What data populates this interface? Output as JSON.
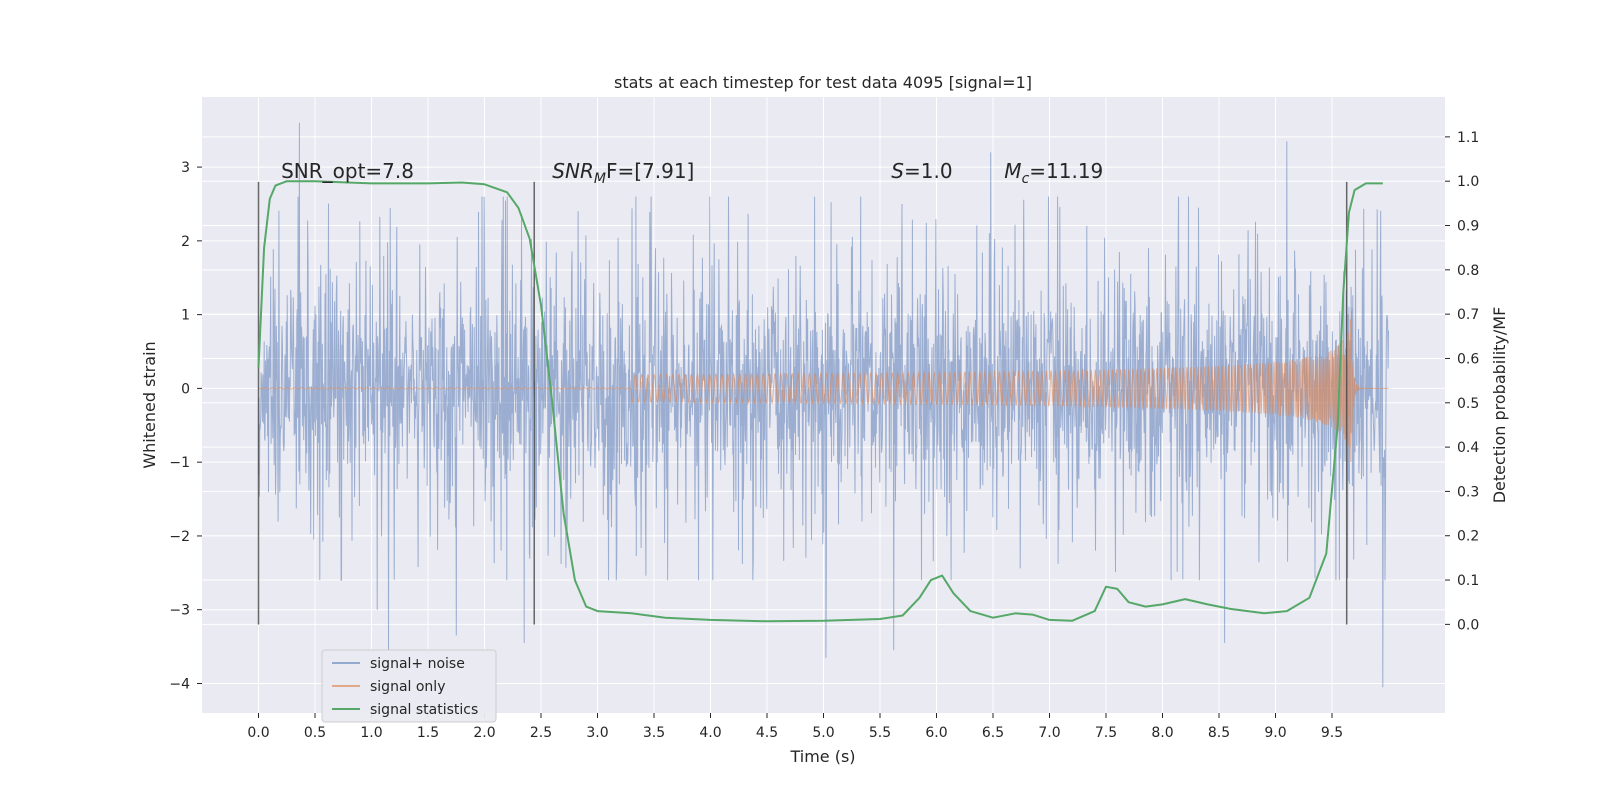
{
  "chart_data": {
    "type": "line",
    "title": "stats at each timestep for test data 4095 [signal=1]",
    "xlabel": "Time (s)",
    "ylabel": "Whitened strain",
    "y2label": "Detection probability/MF",
    "xlim": [
      -0.5,
      10.5
    ],
    "ylim": [
      -4.4,
      3.95
    ],
    "y2lim": [
      -0.2,
      1.19
    ],
    "xticks": [
      "0.0",
      "0.5",
      "1.0",
      "1.5",
      "2.0",
      "2.5",
      "3.0",
      "3.5",
      "4.0",
      "4.5",
      "5.0",
      "5.5",
      "6.0",
      "6.5",
      "7.0",
      "7.5",
      "8.0",
      "8.5",
      "9.0",
      "9.5"
    ],
    "xtick_values": [
      0.0,
      0.5,
      1.0,
      1.5,
      2.0,
      2.5,
      3.0,
      3.5,
      4.0,
      4.5,
      5.0,
      5.5,
      6.0,
      6.5,
      7.0,
      7.5,
      8.0,
      8.5,
      9.0,
      9.5
    ],
    "yticks": [
      "−4",
      "−3",
      "−2",
      "−1",
      "0",
      "1",
      "2",
      "3"
    ],
    "ytick_values": [
      -4,
      -3,
      -2,
      -1,
      0,
      1,
      2,
      3
    ],
    "y2ticks": [
      "0.0",
      "0.1",
      "0.2",
      "0.3",
      "0.4",
      "0.5",
      "0.6",
      "0.7",
      "0.8",
      "0.9",
      "1.0",
      "1.1"
    ],
    "y2tick_values": [
      0.0,
      0.1,
      0.2,
      0.3,
      0.4,
      0.5,
      0.6,
      0.7,
      0.8,
      0.9,
      1.0,
      1.1
    ],
    "grid": true,
    "legend_position": "lower-left",
    "annotations": [
      {
        "text": "SNR_opt=7.8",
        "x": 0.2,
        "y": 2.85
      },
      {
        "text": "SNR",
        "sub": "M",
        "suffix": "F=[7.91]",
        "x": 2.6,
        "y": 2.85
      },
      {
        "text": "S",
        "suffix": "=1.0",
        "x": 5.6,
        "y": 2.85
      },
      {
        "text": "M",
        "sub": "c",
        "suffix": "=11.19",
        "x": 6.6,
        "y": 2.85
      }
    ],
    "vertical_lines": [
      {
        "x": 0.0,
        "ymin": -3.2,
        "ymax": 2.8
      },
      {
        "x": 2.44,
        "ymin": -3.2,
        "ymax": 2.8
      },
      {
        "x": 9.63,
        "ymin": -3.2,
        "ymax": 2.8
      }
    ],
    "series": [
      {
        "name": "signal+ noise",
        "color": "#4c72b0",
        "style": "noise",
        "x_range": [
          0.0,
          10.0
        ],
        "typical_amplitude": 1.5,
        "extremes": [
          {
            "x": 0.36,
            "y": 3.6
          },
          {
            "x": 1.05,
            "y": -3.0
          },
          {
            "x": 1.15,
            "y": -3.55
          },
          {
            "x": 1.75,
            "y": -3.35
          },
          {
            "x": 2.35,
            "y": -3.45
          },
          {
            "x": 5.02,
            "y": -3.65
          },
          {
            "x": 5.62,
            "y": -3.55
          },
          {
            "x": 6.48,
            "y": 3.2
          },
          {
            "x": 8.55,
            "y": -3.45
          },
          {
            "x": 9.1,
            "y": 3.35
          },
          {
            "x": 9.95,
            "y": -4.05
          }
        ]
      },
      {
        "name": "signal only",
        "color": "#dd8452",
        "style": "chirp",
        "x_range": [
          0.0,
          10.0
        ],
        "merger_time": 9.67,
        "start_time": 5.3,
        "peak_amplitude": 1.05
      },
      {
        "name": "signal statistics",
        "color": "#55a868",
        "style": "line",
        "axis": "y2",
        "points": [
          [
            0.0,
            0.58
          ],
          [
            0.05,
            0.85
          ],
          [
            0.1,
            0.96
          ],
          [
            0.15,
            0.99
          ],
          [
            0.25,
            1.0
          ],
          [
            0.5,
            1.0
          ],
          [
            1.0,
            0.995
          ],
          [
            1.5,
            0.995
          ],
          [
            1.8,
            0.997
          ],
          [
            2.0,
            0.993
          ],
          [
            2.2,
            0.975
          ],
          [
            2.3,
            0.94
          ],
          [
            2.4,
            0.87
          ],
          [
            2.5,
            0.72
          ],
          [
            2.6,
            0.5
          ],
          [
            2.7,
            0.25
          ],
          [
            2.8,
            0.1
          ],
          [
            2.9,
            0.04
          ],
          [
            3.0,
            0.03
          ],
          [
            3.3,
            0.025
          ],
          [
            3.6,
            0.015
          ],
          [
            4.0,
            0.01
          ],
          [
            4.5,
            0.007
          ],
          [
            5.0,
            0.008
          ],
          [
            5.5,
            0.012
          ],
          [
            5.7,
            0.02
          ],
          [
            5.85,
            0.06
          ],
          [
            5.95,
            0.1
          ],
          [
            6.05,
            0.11
          ],
          [
            6.15,
            0.07
          ],
          [
            6.3,
            0.03
          ],
          [
            6.5,
            0.015
          ],
          [
            6.7,
            0.025
          ],
          [
            6.85,
            0.022
          ],
          [
            7.0,
            0.01
          ],
          [
            7.2,
            0.008
          ],
          [
            7.4,
            0.03
          ],
          [
            7.5,
            0.085
          ],
          [
            7.6,
            0.08
          ],
          [
            7.7,
            0.05
          ],
          [
            7.85,
            0.04
          ],
          [
            8.0,
            0.045
          ],
          [
            8.2,
            0.057
          ],
          [
            8.4,
            0.045
          ],
          [
            8.6,
            0.035
          ],
          [
            8.9,
            0.025
          ],
          [
            9.1,
            0.03
          ],
          [
            9.3,
            0.06
          ],
          [
            9.45,
            0.16
          ],
          [
            9.55,
            0.45
          ],
          [
            9.6,
            0.75
          ],
          [
            9.65,
            0.93
          ],
          [
            9.7,
            0.98
          ],
          [
            9.8,
            0.995
          ],
          [
            9.95,
            0.995
          ]
        ]
      }
    ]
  }
}
